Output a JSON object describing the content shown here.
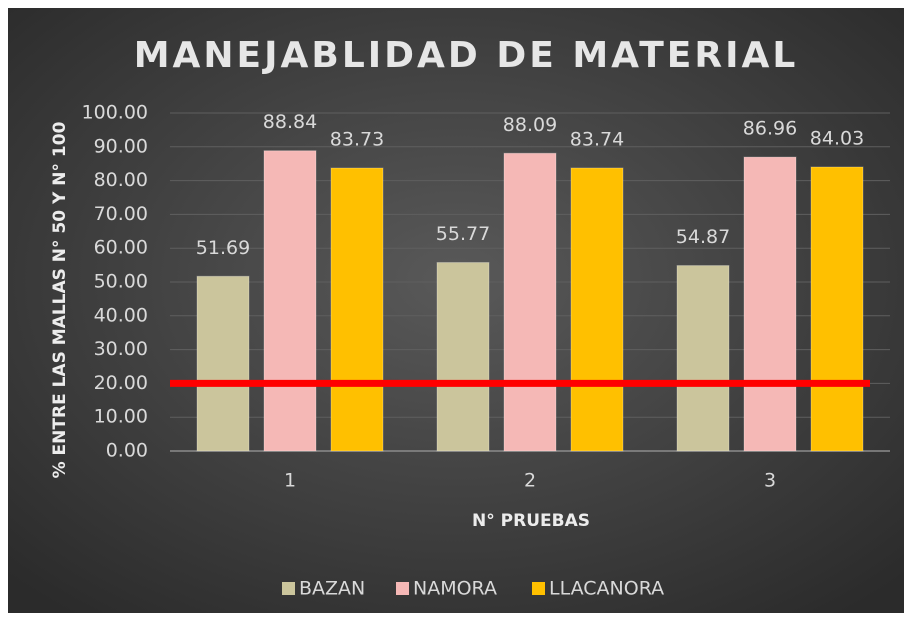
{
  "chart_data": {
    "type": "bar",
    "title": "MANEJABLIDAD DE MATERIAL",
    "x_label": "N° PRUEBAS",
    "y_label": "% ENTRE LAS MALLAS N° 50 Y  N° 100",
    "categories": [
      "1",
      "2",
      "3"
    ],
    "series": [
      {
        "name": "BAZAN",
        "color": "#cbc59c",
        "values": [
          51.69,
          55.77,
          54.87
        ]
      },
      {
        "name": "NAMORA",
        "color": "#f5b8b6",
        "values": [
          88.84,
          88.09,
          86.96
        ]
      },
      {
        "name": "LLACANORA",
        "color": "#ffc000",
        "values": [
          83.73,
          83.74,
          84.03
        ]
      }
    ],
    "ylim": [
      0,
      100
    ],
    "yticks": [
      {
        "value": 0,
        "label": "0.00"
      },
      {
        "value": 10,
        "label": "10.00"
      },
      {
        "value": 20,
        "label": "20.00"
      },
      {
        "value": 30,
        "label": "30.00"
      },
      {
        "value": 40,
        "label": "40.00"
      },
      {
        "value": 50,
        "label": "50.00"
      },
      {
        "value": 60,
        "label": "60.00"
      },
      {
        "value": 70,
        "label": "70.00"
      },
      {
        "value": 80,
        "label": "80.00"
      },
      {
        "value": 90,
        "label": "90.00"
      },
      {
        "value": 100,
        "label": "100.00"
      }
    ],
    "grid": true,
    "reference_line": {
      "value": 20,
      "color": "#ff0000"
    },
    "legend": "bottom"
  }
}
